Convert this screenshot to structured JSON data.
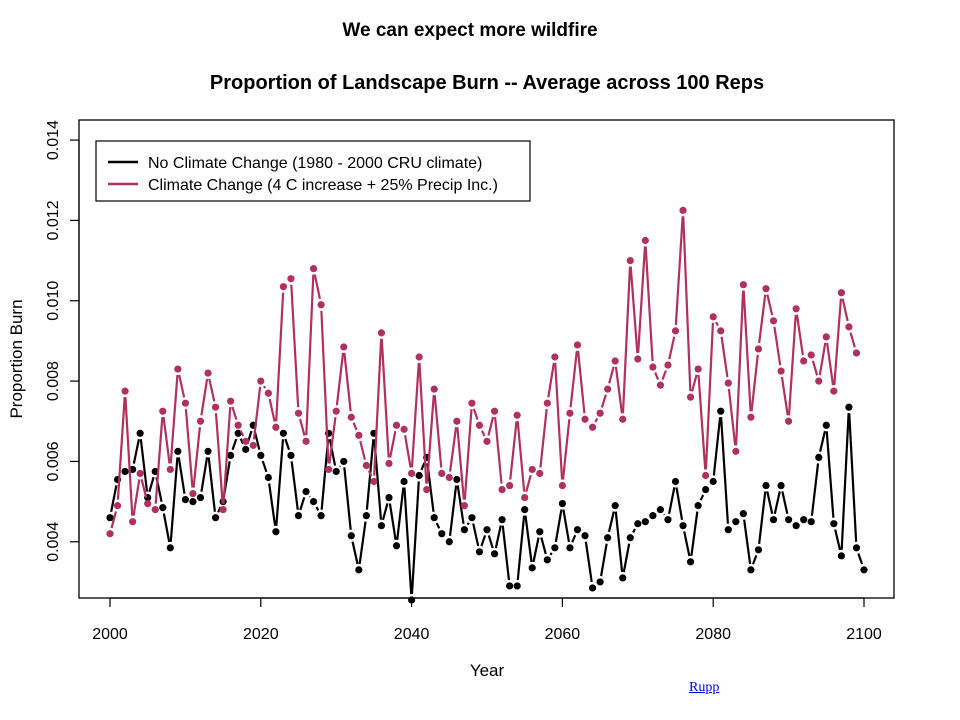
{
  "slide": {
    "title": "We can expect more wildfire",
    "credit": "Rupp"
  },
  "colors": {
    "series_no_change": "#000000",
    "series_climate_change": "#b03060",
    "axis": "#000000"
  },
  "chart_data": {
    "type": "line",
    "title": "Proportion of Landscape Burn -- Average across 100 Reps",
    "xlabel": "Year",
    "ylabel": "Proportion Burn",
    "xlim": [
      2000,
      2100
    ],
    "ylim": [
      0.0026,
      0.0145
    ],
    "x_ticks": [
      2000,
      2020,
      2040,
      2060,
      2080,
      2100
    ],
    "x_tick_labels": [
      "2000",
      "2020",
      "2040",
      "2060",
      "2080",
      "2100"
    ],
    "y_ticks": [
      0.004,
      0.006,
      0.008,
      0.01,
      0.012,
      0.014
    ],
    "y_tick_labels": [
      "0.004",
      "0.006",
      "0.008",
      "0.010",
      "0.012",
      "0.014"
    ],
    "legend_position": "top-left",
    "grid": false,
    "x_start": 2000,
    "x_step": 1,
    "series": [
      {
        "name": "No Climate Change (1980 - 2000 CRU climate)",
        "color": "#000000",
        "values": [
          0.0046,
          0.00555,
          0.00575,
          0.0058,
          0.0067,
          0.0051,
          0.00575,
          0.00485,
          0.00385,
          0.00625,
          0.00505,
          0.005,
          0.0051,
          0.00625,
          0.0046,
          0.005,
          0.00615,
          0.0067,
          0.0063,
          0.0069,
          0.00615,
          0.0056,
          0.00425,
          0.0067,
          0.00615,
          0.00465,
          0.00525,
          0.005,
          0.00465,
          0.0067,
          0.00575,
          0.006,
          0.00415,
          0.0033,
          0.00465,
          0.0067,
          0.0044,
          0.0051,
          0.0039,
          0.0055,
          0.00255,
          0.00565,
          0.0061,
          0.0046,
          0.0042,
          0.004,
          0.00555,
          0.0043,
          0.0046,
          0.00375,
          0.0043,
          0.0037,
          0.00455,
          0.0029,
          0.0029,
          0.0048,
          0.00335,
          0.00425,
          0.00355,
          0.00385,
          0.00495,
          0.00385,
          0.0043,
          0.00415,
          0.00285,
          0.003,
          0.0041,
          0.0049,
          0.0031,
          0.0041,
          0.00445,
          0.0045,
          0.00465,
          0.0048,
          0.00455,
          0.0055,
          0.0044,
          0.0035,
          0.0049,
          0.0053,
          0.0055,
          0.00725,
          0.0043,
          0.0045,
          0.0047,
          0.0033,
          0.0038,
          0.0054,
          0.00455,
          0.0054,
          0.00455,
          0.0044,
          0.00455,
          0.0045,
          0.0061,
          0.0069,
          0.00445,
          0.00365,
          0.00735,
          0.00385,
          0.0033
        ]
      },
      {
        "name": "Climate Change (4 C increase + 25% Precip Inc.)",
        "color": "#b03060",
        "values": [
          0.0042,
          0.0049,
          0.00775,
          0.0045,
          0.0057,
          0.00495,
          0.0048,
          0.00725,
          0.0058,
          0.0083,
          0.00745,
          0.0052,
          0.007,
          0.0082,
          0.00735,
          0.0048,
          0.0075,
          0.0069,
          0.0065,
          0.0064,
          0.008,
          0.0077,
          0.00685,
          0.01035,
          0.01055,
          0.0072,
          0.0065,
          0.0108,
          0.0099,
          0.0058,
          0.00725,
          0.00885,
          0.0071,
          0.00665,
          0.0059,
          0.0055,
          0.0092,
          0.00595,
          0.0069,
          0.0068,
          0.0057,
          0.0086,
          0.0053,
          0.0078,
          0.0057,
          0.0056,
          0.007,
          0.0049,
          0.00745,
          0.0069,
          0.0065,
          0.00725,
          0.0053,
          0.0054,
          0.00715,
          0.0051,
          0.0058,
          0.0057,
          0.00745,
          0.0086,
          0.0054,
          0.0072,
          0.0089,
          0.00705,
          0.00685,
          0.0072,
          0.0078,
          0.0085,
          0.00705,
          0.011,
          0.00855,
          0.0115,
          0.00835,
          0.0079,
          0.0084,
          0.00925,
          0.01225,
          0.0076,
          0.0083,
          0.00565,
          0.0096,
          0.00925,
          0.00795,
          0.00625,
          0.0104,
          0.0071,
          0.0088,
          0.0103,
          0.0095,
          0.00825,
          0.007,
          0.0098,
          0.0085,
          0.00865,
          0.008,
          0.0091,
          0.00775,
          0.0102,
          0.00935,
          0.0087
        ]
      }
    ]
  }
}
